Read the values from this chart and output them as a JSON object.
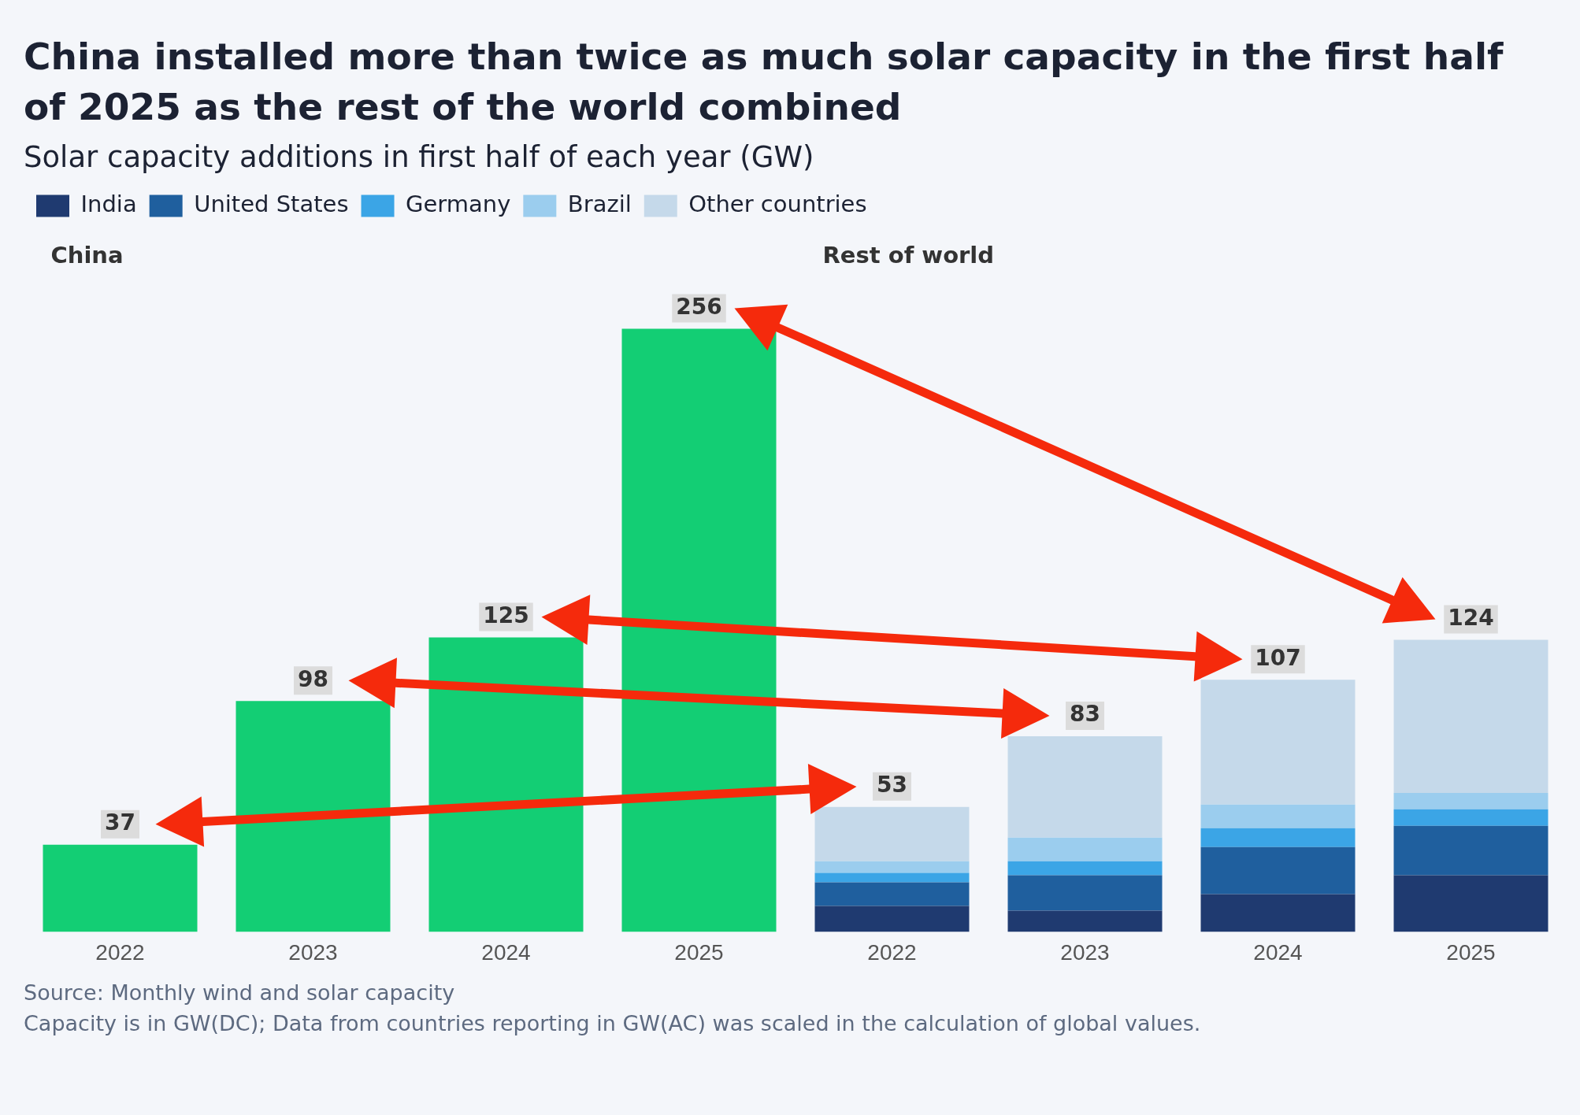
{
  "chart_data": {
    "type": "bar",
    "title": "China installed more than twice as much solar capacity in the first half of 2025 as the rest of the world combined",
    "subtitle": "Solar capacity additions in first half of each year (GW)",
    "categories": [
      "2022",
      "2023",
      "2024",
      "2025",
      "2022",
      "2023",
      "2024",
      "2025"
    ],
    "stacked": true,
    "legend": "top left",
    "tick_labels": "x",
    "series": [
      {
        "color": "#13ce74",
        "values": [
          37,
          98,
          125,
          256,
          null,
          null,
          null,
          null
        ],
        "value_labels": [
          "37",
          "98",
          "125",
          "256",
          null,
          null,
          null,
          null
        ]
      },
      {
        "name": "India",
        "color": "#1f3a70",
        "values": [
          null,
          null,
          null,
          null,
          11,
          9,
          16,
          24
        ]
      },
      {
        "name": "United States",
        "color": "#1f5f9e",
        "values": [
          null,
          null,
          null,
          null,
          10,
          15,
          20,
          21
        ]
      },
      {
        "name": "Germany",
        "color": "#3ba5e6",
        "values": [
          null,
          null,
          null,
          null,
          4,
          6,
          8,
          7
        ]
      },
      {
        "name": "Brazil",
        "color": "#9bcdee",
        "values": [
          null,
          null,
          null,
          null,
          5,
          10,
          10,
          7
        ]
      },
      {
        "name": "Other countries",
        "color": "#c5d9ea",
        "values": [
          null,
          null,
          null,
          null,
          23,
          43,
          53,
          65
        ]
      }
    ],
    "totals": [
      null,
      null,
      null,
      null,
      "53",
      "83",
      "107",
      "124"
    ],
    "annotations": [
      "China",
      "Rest of world",
      "Source: Monthly wind and solar capacity",
      "Capacity is in GW(DC); Data from countries reporting in GW(AC) was scaled in the calculation of global values."
    ]
  }
}
